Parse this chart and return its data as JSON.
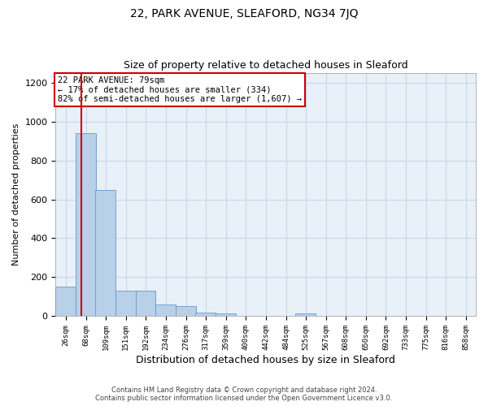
{
  "title1": "22, PARK AVENUE, SLEAFORD, NG34 7JQ",
  "title2": "Size of property relative to detached houses in Sleaford",
  "xlabel": "Distribution of detached houses by size in Sleaford",
  "ylabel": "Number of detached properties",
  "annotation_line1": "22 PARK AVENUE: 79sqm",
  "annotation_line2": "← 17% of detached houses are smaller (334)",
  "annotation_line3": "82% of semi-detached houses are larger (1,607) →",
  "footer1": "Contains HM Land Registry data © Crown copyright and database right 2024.",
  "footer2": "Contains public sector information licensed under the Open Government Licence v3.0.",
  "bin_labels": [
    "26sqm",
    "68sqm",
    "109sqm",
    "151sqm",
    "192sqm",
    "234sqm",
    "276sqm",
    "317sqm",
    "359sqm",
    "400sqm",
    "442sqm",
    "484sqm",
    "525sqm",
    "567sqm",
    "608sqm",
    "650sqm",
    "692sqm",
    "733sqm",
    "775sqm",
    "816sqm",
    "858sqm"
  ],
  "bin_edges": [
    26,
    68,
    109,
    151,
    192,
    234,
    276,
    317,
    359,
    400,
    442,
    484,
    525,
    567,
    608,
    650,
    692,
    733,
    775,
    816,
    858
  ],
  "bar_values": [
    150,
    940,
    650,
    130,
    130,
    60,
    50,
    20,
    15,
    0,
    0,
    0,
    15,
    0,
    0,
    0,
    0,
    0,
    0,
    0
  ],
  "bar_color": "#b8d0e8",
  "bar_edge_color": "#6699cc",
  "grid_color": "#c8d8e8",
  "background_color": "#e8f0f8",
  "vline_x": 79,
  "vline_color": "#cc0000",
  "annotation_box_color": "#cc0000",
  "ylim": [
    0,
    1250
  ],
  "yticks": [
    0,
    200,
    400,
    600,
    800,
    1000,
    1200
  ]
}
